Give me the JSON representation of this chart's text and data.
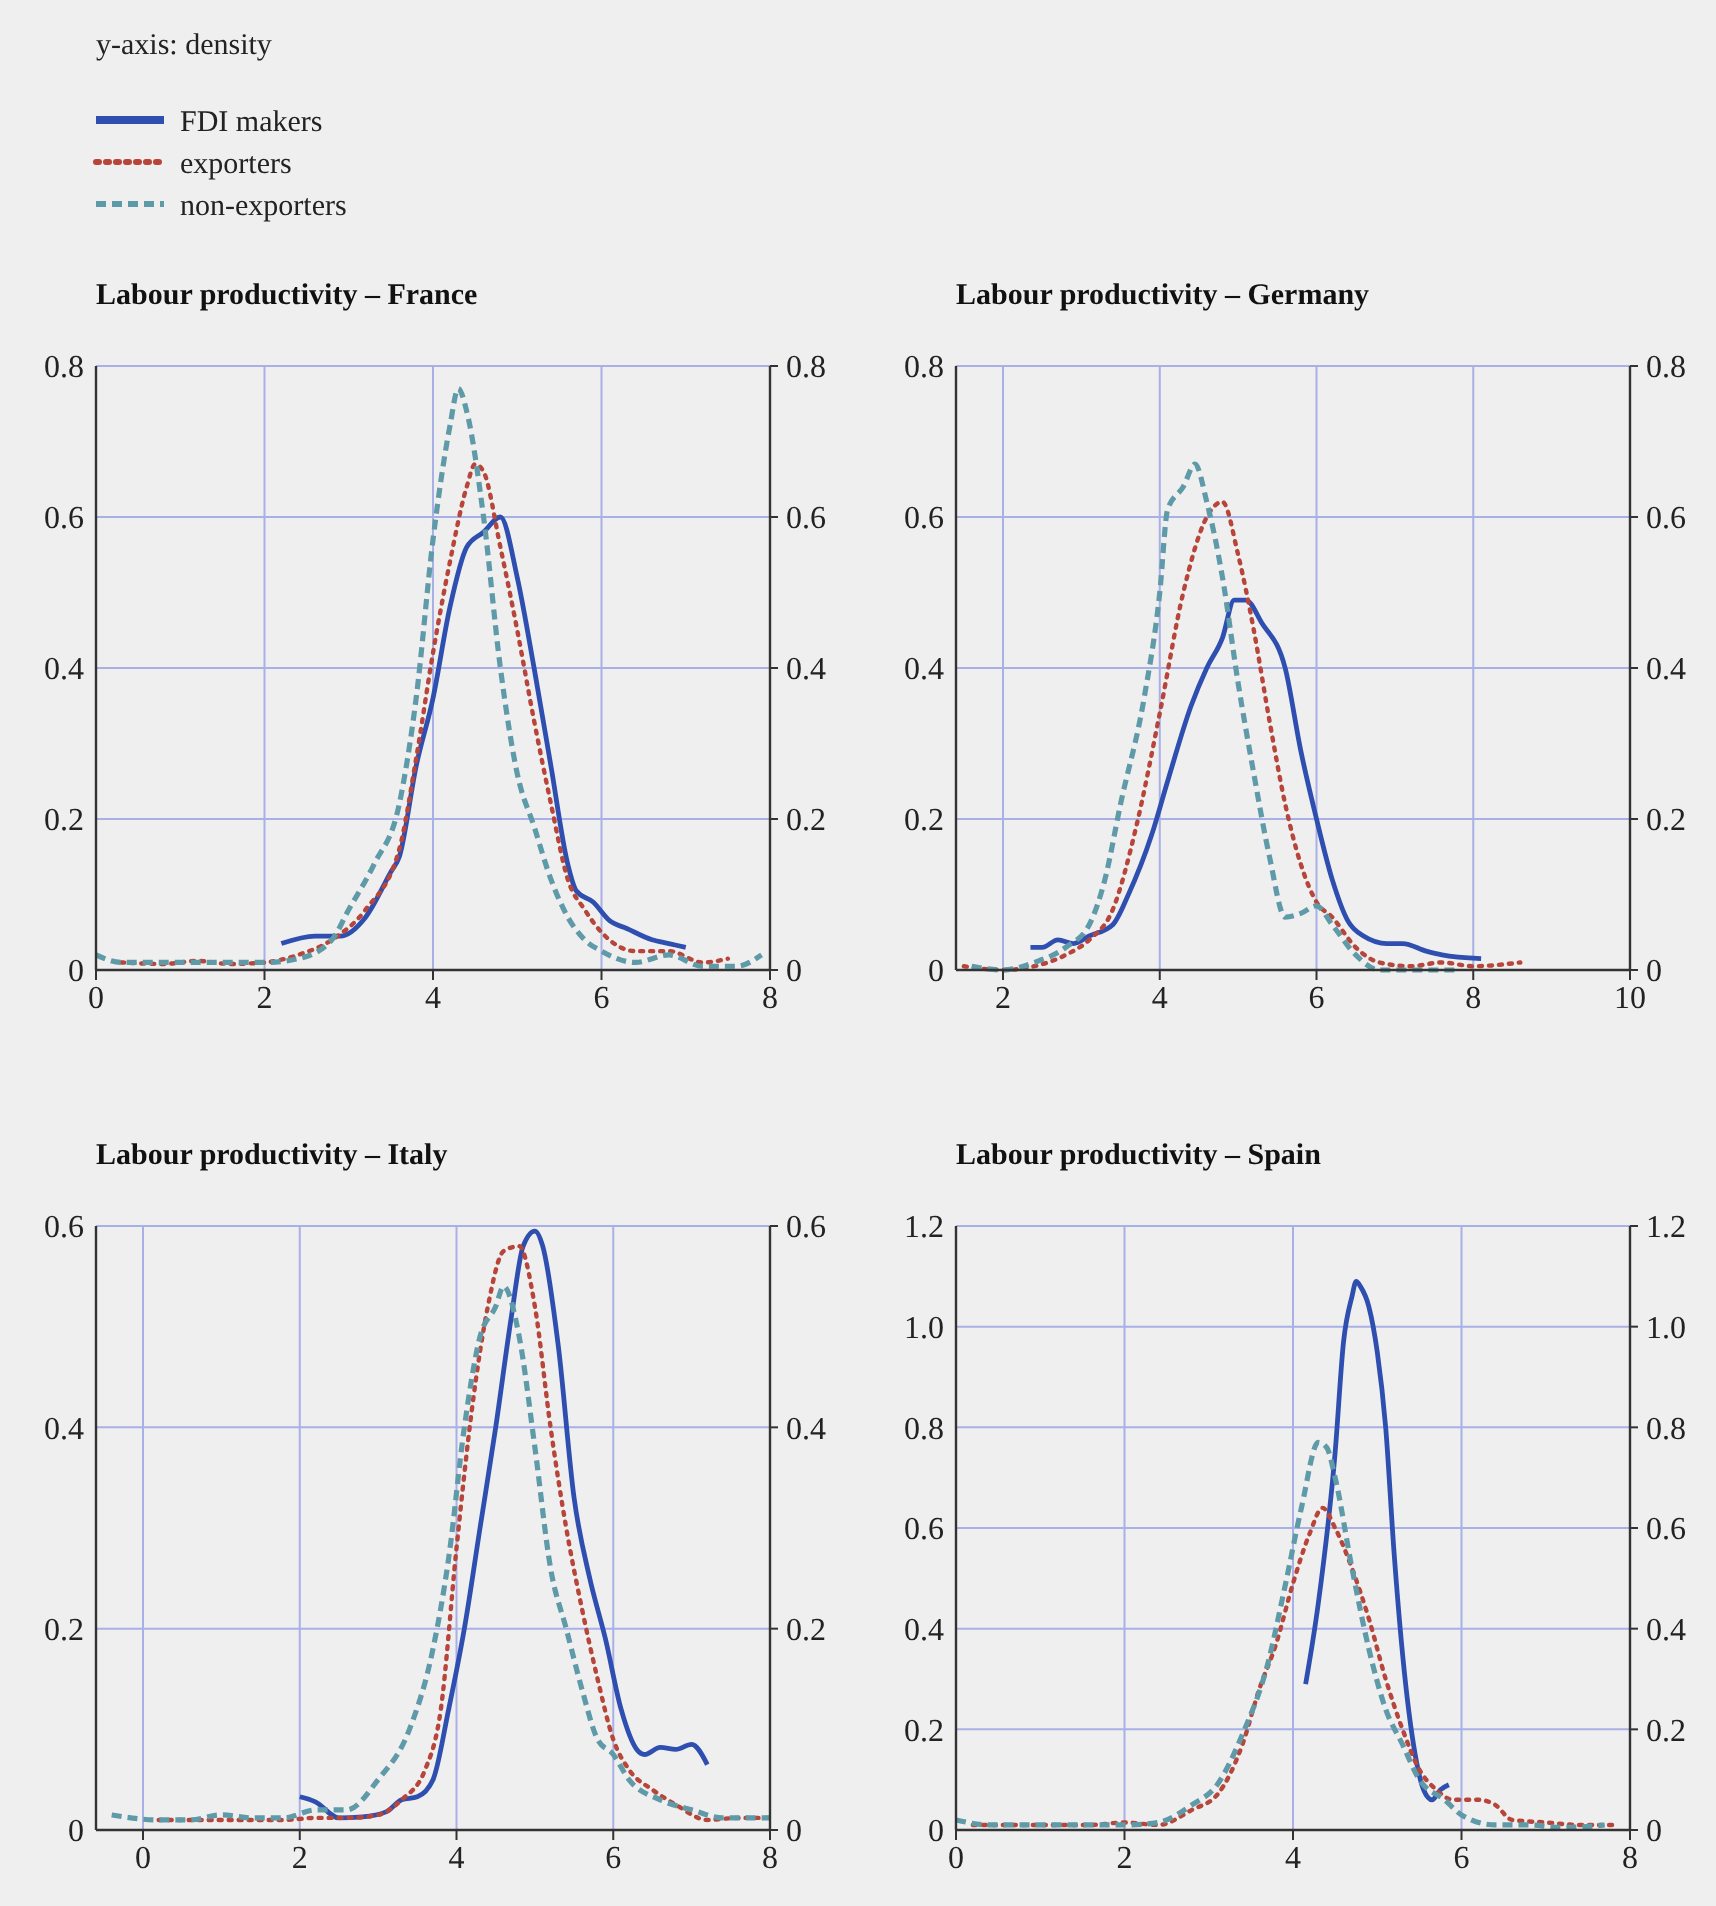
{
  "chart_data": [
    {
      "type": "line",
      "title": "Labour productivity – France",
      "annotations": [
        "y-axis: density"
      ],
      "legend": "top left",
      "grid": true,
      "xlim": [
        0,
        8
      ],
      "xticks": [
        0,
        2,
        4,
        6,
        8
      ],
      "ylim": [
        0,
        0.8
      ],
      "yticks": [
        0,
        0.2,
        0.4,
        0.6,
        0.8
      ],
      "y2lim": [
        0,
        0.8
      ],
      "y2ticks": [
        0,
        0.2,
        0.4,
        0.6,
        0.8
      ],
      "series": [
        {
          "name": "FDI makers",
          "color": "#2f4fb0",
          "line_style": "solid",
          "x": [
            2.2,
            2.6,
            2.9,
            3.2,
            3.5,
            3.6,
            3.8,
            4.0,
            4.2,
            4.4,
            4.6,
            4.8,
            5.0,
            5.2,
            5.4,
            5.6,
            5.7,
            5.9,
            6.1,
            6.3,
            6.6,
            6.8,
            7.0
          ],
          "values": [
            0.035,
            0.045,
            0.045,
            0.07,
            0.13,
            0.15,
            0.27,
            0.36,
            0.48,
            0.56,
            0.58,
            0.6,
            0.52,
            0.4,
            0.27,
            0.14,
            0.105,
            0.09,
            0.065,
            0.055,
            0.04,
            0.035,
            0.03
          ]
        },
        {
          "name": "exporters",
          "color": "#b8453a",
          "line_style": "dotted",
          "x": [
            0.3,
            0.8,
            1.2,
            1.6,
            2.0,
            2.4,
            2.8,
            3.2,
            3.6,
            3.8,
            4.0,
            4.2,
            4.4,
            4.5,
            4.6,
            4.8,
            5.0,
            5.2,
            5.4,
            5.6,
            5.8,
            6.0,
            6.4,
            6.8,
            7.2,
            7.5
          ],
          "values": [
            0.01,
            0.008,
            0.012,
            0.008,
            0.01,
            0.02,
            0.04,
            0.08,
            0.16,
            0.28,
            0.42,
            0.54,
            0.64,
            0.67,
            0.66,
            0.56,
            0.45,
            0.33,
            0.22,
            0.12,
            0.08,
            0.05,
            0.025,
            0.025,
            0.01,
            0.015
          ]
        },
        {
          "name": "non-exporters",
          "color": "#5f9aa8",
          "line_style": "dashed",
          "x": [
            0,
            0.3,
            1.0,
            1.5,
            2.0,
            2.4,
            2.8,
            3.0,
            3.3,
            3.6,
            3.8,
            4.0,
            4.2,
            4.3,
            4.4,
            4.6,
            4.8,
            5.0,
            5.2,
            5.4,
            5.6,
            5.8,
            6.0,
            6.4,
            6.8,
            7.2,
            7.6,
            7.9
          ],
          "values": [
            0.02,
            0.01,
            0.01,
            0.01,
            0.01,
            0.015,
            0.04,
            0.08,
            0.14,
            0.22,
            0.36,
            0.57,
            0.72,
            0.77,
            0.74,
            0.6,
            0.4,
            0.26,
            0.19,
            0.12,
            0.07,
            0.04,
            0.025,
            0.01,
            0.02,
            0.005,
            0.005,
            0.02
          ]
        }
      ]
    },
    {
      "type": "line",
      "title": "Labour productivity – Germany",
      "grid": true,
      "xlim": [
        1.4,
        10
      ],
      "xticks": [
        2,
        4,
        6,
        8,
        10
      ],
      "ylim": [
        0,
        0.8
      ],
      "yticks": [
        0,
        0.2,
        0.4,
        0.6,
        0.8
      ],
      "y2lim": [
        0,
        0.8
      ],
      "y2ticks": [
        0,
        0.2,
        0.4,
        0.6,
        0.8
      ],
      "series": [
        {
          "color": "#2f4fb0",
          "line_style": "solid",
          "x": [
            2.35,
            2.5,
            2.7,
            2.9,
            3.1,
            3.4,
            3.6,
            3.9,
            4.1,
            4.4,
            4.6,
            4.8,
            4.95,
            5.1,
            5.3,
            5.6,
            5.8,
            6.0,
            6.2,
            6.4,
            6.6,
            6.9,
            7.1,
            7.4,
            7.6,
            8.1
          ],
          "values": [
            0.03,
            0.03,
            0.04,
            0.035,
            0.045,
            0.06,
            0.1,
            0.18,
            0.25,
            0.35,
            0.4,
            0.44,
            0.49,
            0.49,
            0.46,
            0.4,
            0.29,
            0.2,
            0.12,
            0.065,
            0.045,
            0.035,
            0.035,
            0.025,
            0.02,
            0.015
          ]
        },
        {
          "color": "#b8453a",
          "line_style": "dotted",
          "x": [
            1.5,
            2.0,
            2.4,
            2.8,
            3.1,
            3.4,
            3.7,
            4.0,
            4.3,
            4.6,
            4.8,
            5.0,
            5.2,
            5.4,
            5.6,
            5.8,
            6.0,
            6.2,
            6.5,
            6.8,
            7.2,
            7.6,
            8.0,
            8.6
          ],
          "values": [
            0.005,
            0,
            0.005,
            0.02,
            0.04,
            0.08,
            0.19,
            0.34,
            0.5,
            0.6,
            0.62,
            0.55,
            0.45,
            0.33,
            0.22,
            0.14,
            0.09,
            0.07,
            0.03,
            0.01,
            0.005,
            0.01,
            0.005,
            0.01
          ]
        },
        {
          "color": "#5f9aa8",
          "line_style": "dashed",
          "x": [
            1.6,
            2.0,
            2.4,
            2.8,
            3.1,
            3.3,
            3.5,
            3.8,
            4.0,
            4.1,
            4.3,
            4.45,
            4.6,
            4.8,
            5.0,
            5.2,
            5.4,
            5.6,
            5.8,
            6.0,
            6.2,
            6.5,
            6.8,
            7.2,
            7.8
          ],
          "values": [
            0.005,
            0,
            0.01,
            0.03,
            0.06,
            0.12,
            0.22,
            0.36,
            0.5,
            0.61,
            0.64,
            0.67,
            0.62,
            0.52,
            0.38,
            0.26,
            0.15,
            0.07,
            0.075,
            0.085,
            0.06,
            0.02,
            0,
            0,
            0
          ]
        }
      ]
    },
    {
      "type": "line",
      "title": "Labour productivity – Italy",
      "grid": true,
      "xlim": [
        -0.6,
        8
      ],
      "xticks": [
        0,
        2,
        4,
        6,
        8
      ],
      "ylim": [
        0,
        0.6
      ],
      "yticks": [
        0,
        0.2,
        0.4,
        0.6
      ],
      "y2lim": [
        0,
        0.6
      ],
      "y2ticks": [
        0,
        0.2,
        0.4,
        0.6
      ],
      "series": [
        {
          "color": "#2f4fb0",
          "line_style": "solid",
          "x": [
            2.0,
            2.2,
            2.5,
            2.8,
            3.1,
            3.3,
            3.5,
            3.7,
            3.9,
            4.1,
            4.3,
            4.5,
            4.7,
            4.85,
            5.0,
            5.1,
            5.3,
            5.5,
            5.7,
            5.9,
            6.1,
            6.3,
            6.4,
            6.6,
            6.8,
            7.0,
            7.2
          ],
          "values": [
            0.033,
            0.028,
            0.012,
            0.013,
            0.018,
            0.03,
            0.033,
            0.05,
            0.12,
            0.2,
            0.3,
            0.4,
            0.51,
            0.58,
            0.595,
            0.58,
            0.48,
            0.33,
            0.25,
            0.19,
            0.12,
            0.08,
            0.075,
            0.082,
            0.08,
            0.085,
            0.065
          ]
        },
        {
          "color": "#b8453a",
          "line_style": "dotted",
          "x": [
            0.2,
            0.6,
            1.0,
            1.4,
            1.8,
            2.2,
            2.6,
            3.0,
            3.3,
            3.6,
            3.8,
            4.0,
            4.2,
            4.4,
            4.6,
            4.8,
            5.0,
            5.2,
            5.4,
            5.6,
            5.8,
            6.0,
            6.2,
            6.5,
            6.8,
            7.2,
            7.6,
            8.0
          ],
          "values": [
            0.01,
            0.01,
            0.01,
            0.01,
            0.01,
            0.012,
            0.012,
            0.015,
            0.03,
            0.06,
            0.12,
            0.28,
            0.42,
            0.52,
            0.575,
            0.58,
            0.52,
            0.4,
            0.3,
            0.22,
            0.15,
            0.09,
            0.06,
            0.04,
            0.025,
            0.01,
            0.012,
            0.012
          ]
        },
        {
          "color": "#5f9aa8",
          "line_style": "dashed",
          "x": [
            -0.4,
            0.2,
            0.6,
            1.0,
            1.4,
            1.8,
            2.2,
            2.6,
            3.0,
            3.4,
            3.7,
            3.9,
            4.1,
            4.3,
            4.5,
            4.6,
            4.8,
            5.0,
            5.2,
            5.4,
            5.6,
            5.8,
            6.0,
            6.2,
            6.6,
            7.0,
            7.4,
            8.0
          ],
          "values": [
            0.015,
            0.01,
            0.01,
            0.015,
            0.012,
            0.012,
            0.02,
            0.02,
            0.05,
            0.1,
            0.18,
            0.27,
            0.4,
            0.49,
            0.52,
            0.54,
            0.49,
            0.38,
            0.26,
            0.2,
            0.14,
            0.09,
            0.075,
            0.05,
            0.03,
            0.02,
            0.012,
            0.012
          ]
        }
      ]
    },
    {
      "type": "line",
      "title": "Labour productivity – Spain",
      "grid": true,
      "xlim": [
        0,
        8
      ],
      "xticks": [
        0,
        2,
        4,
        6,
        8
      ],
      "ylim": [
        0,
        1.2
      ],
      "yticks": [
        0,
        0.2,
        0.4,
        0.6,
        0.8,
        {
          "value": 1,
          "label": "1.0"
        },
        1.2
      ],
      "y2lim": [
        0,
        1.2
      ],
      "y2ticks": [
        0,
        0.2,
        0.4,
        0.6,
        0.8,
        {
          "value": 1,
          "label": "1.0"
        },
        1.2
      ],
      "series": [
        {
          "color": "#2f4fb0",
          "line_style": "solid",
          "x": [
            4.15,
            4.3,
            4.5,
            4.6,
            4.7,
            4.75,
            4.8,
            4.9,
            5.0,
            5.1,
            5.2,
            5.3,
            5.45,
            5.55,
            5.65,
            5.75,
            5.85
          ],
          "values": [
            0.29,
            0.45,
            0.75,
            0.97,
            1.06,
            1.09,
            1.08,
            1.04,
            0.95,
            0.8,
            0.55,
            0.35,
            0.15,
            0.08,
            0.06,
            0.08,
            0.09
          ]
        },
        {
          "color": "#b8453a",
          "line_style": "dotted",
          "x": [
            0.2,
            0.8,
            1.2,
            1.6,
            2.0,
            2.4,
            2.8,
            3.1,
            3.4,
            3.6,
            3.8,
            4.0,
            4.2,
            4.35,
            4.5,
            4.7,
            4.9,
            5.1,
            5.3,
            5.5,
            5.7,
            5.9,
            6.2,
            6.4,
            6.6,
            7.0,
            7.4,
            7.8
          ],
          "values": [
            0.01,
            0.01,
            0.01,
            0.01,
            0.015,
            0.01,
            0.04,
            0.07,
            0.17,
            0.28,
            0.37,
            0.49,
            0.59,
            0.64,
            0.6,
            0.52,
            0.42,
            0.3,
            0.2,
            0.12,
            0.08,
            0.06,
            0.06,
            0.05,
            0.02,
            0.015,
            0.01,
            0.01
          ]
        },
        {
          "color": "#5f9aa8",
          "line_style": "dashed",
          "x": [
            0,
            0.4,
            1.0,
            1.6,
            2.0,
            2.4,
            2.8,
            3.1,
            3.4,
            3.7,
            3.9,
            4.1,
            4.3,
            4.4,
            4.5,
            4.7,
            4.9,
            5.1,
            5.3,
            5.5,
            5.8,
            6.0,
            6.4,
            6.8,
            7.2,
            7.7
          ],
          "values": [
            0.02,
            0.01,
            0.01,
            0.01,
            0.01,
            0.015,
            0.05,
            0.09,
            0.19,
            0.33,
            0.48,
            0.64,
            0.77,
            0.76,
            0.7,
            0.52,
            0.36,
            0.24,
            0.17,
            0.1,
            0.06,
            0.03,
            0.01,
            0.01,
            0.005,
            0.01
          ]
        }
      ]
    }
  ]
}
